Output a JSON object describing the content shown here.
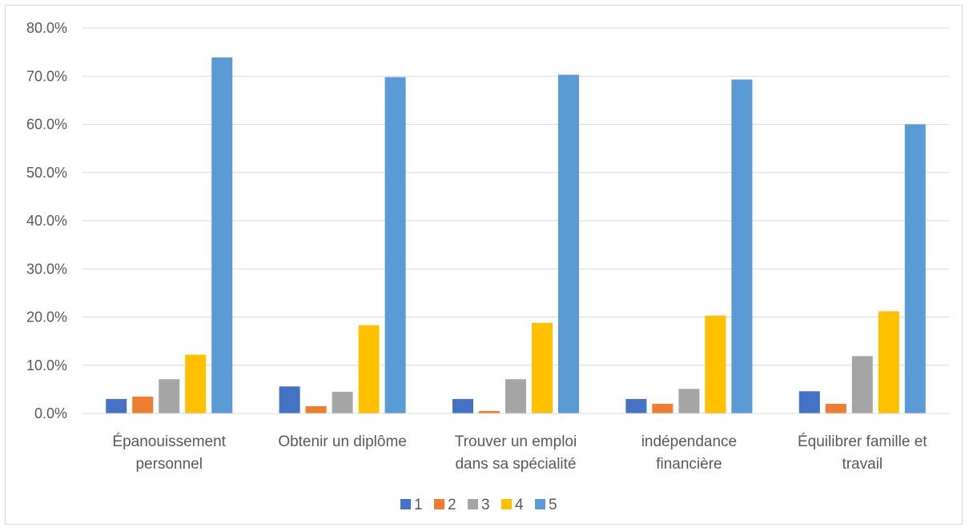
{
  "chart_data": {
    "type": "bar",
    "categories": [
      [
        "Épanouissement",
        "personnel"
      ],
      [
        "Obtenir un diplôme"
      ],
      [
        "Trouver un emploi",
        "dans sa spécialité"
      ],
      [
        "indépendance",
        "financière"
      ],
      [
        "Équilibrer famille et",
        "travail"
      ]
    ],
    "series": [
      {
        "name": "1",
        "color": "#4472C4",
        "values": [
          3.0,
          5.6,
          3.0,
          3.0,
          4.6
        ]
      },
      {
        "name": "2",
        "color": "#ED7D31",
        "values": [
          3.5,
          1.5,
          0.5,
          2.0,
          2.0
        ]
      },
      {
        "name": "3",
        "color": "#A5A5A5",
        "values": [
          7.1,
          4.5,
          7.1,
          5.1,
          11.9
        ]
      },
      {
        "name": "4",
        "color": "#FFC000",
        "values": [
          12.2,
          18.3,
          18.8,
          20.3,
          21.2
        ]
      },
      {
        "name": "5",
        "color": "#5B9BD5",
        "values": [
          73.9,
          69.8,
          70.3,
          69.3,
          60.0
        ]
      }
    ],
    "ylim": [
      0,
      80
    ],
    "yticks": [
      "0.0%",
      "10.0%",
      "20.0%",
      "30.0%",
      "40.0%",
      "50.0%",
      "60.0%",
      "70.0%",
      "80.0%"
    ],
    "grid": true,
    "legend_position": "bottom"
  }
}
